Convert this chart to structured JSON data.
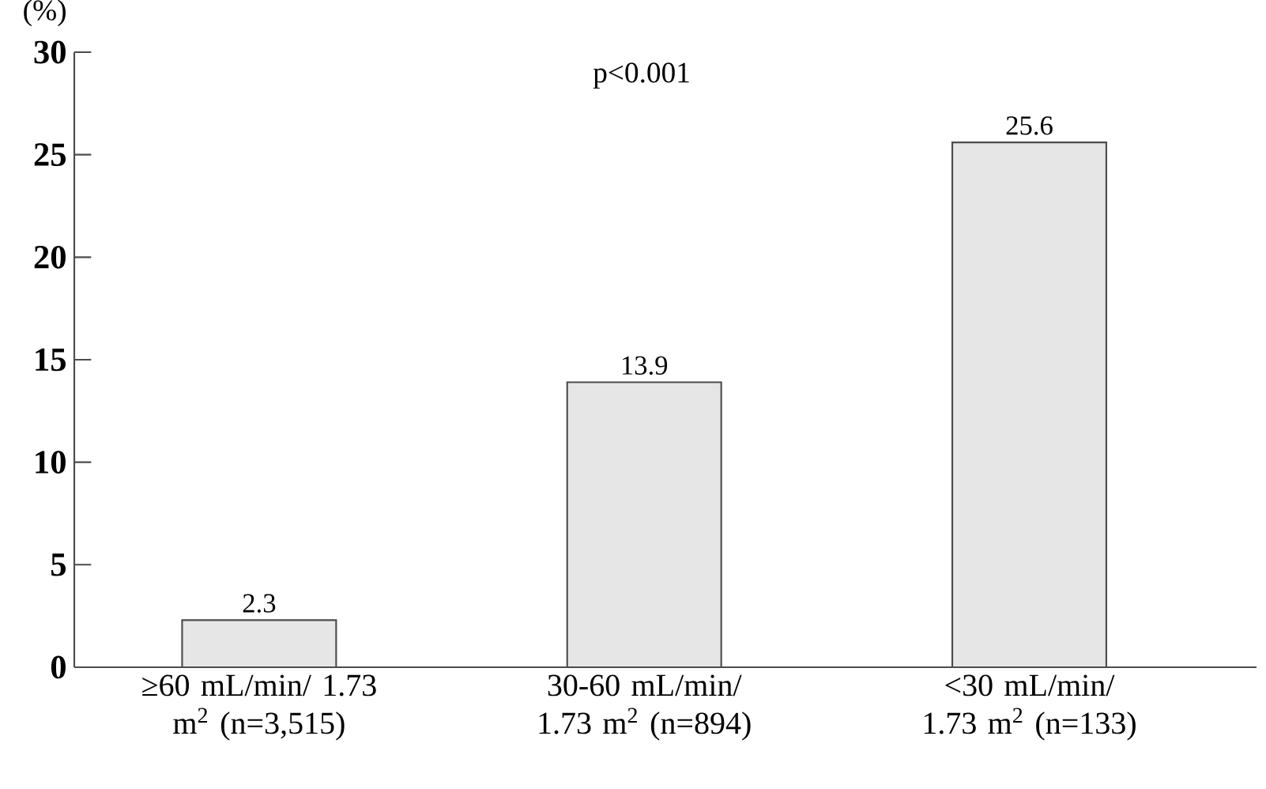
{
  "chart_data": {
    "type": "bar",
    "ylabel": "(%)",
    "categories": [
      "≥60 mL/min/ 1.73 m$^{2}$ (n=3,515)",
      "30-60 mL/min/ 1.73 m$^{2}$ (n=894)",
      "<30 mL/min/ 1.73 m$^{2}$ (n=133)"
    ],
    "values": [
      2.3,
      13.9,
      25.6
    ],
    "color": "#e6e6e6",
    "ylim": [
      0,
      30
    ],
    "yticks": [
      0,
      5,
      10,
      15,
      20,
      25,
      30
    ],
    "data_labels": true,
    "annotations": [
      "p<0.001"
    ]
  }
}
